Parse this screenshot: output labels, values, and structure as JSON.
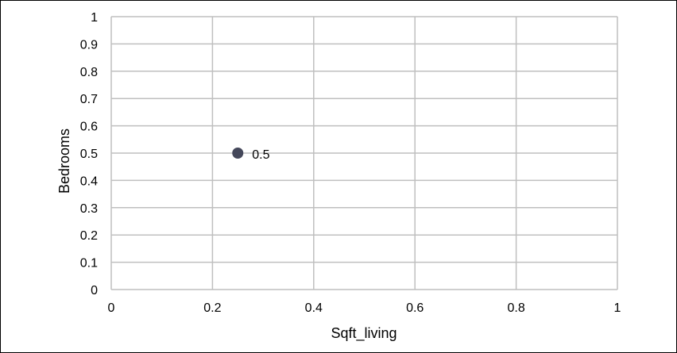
{
  "chart_data": {
    "type": "scatter",
    "xlabel": "Sqft_living",
    "ylabel": "Bedrooms",
    "xlim": [
      0,
      1
    ],
    "ylim": [
      0,
      1
    ],
    "x_ticks": [
      "0",
      "0.2",
      "0.4",
      "0.6",
      "0.8",
      "1"
    ],
    "y_ticks": [
      "0",
      "0.1",
      "0.2",
      "0.3",
      "0.4",
      "0.5",
      "0.6",
      "0.7",
      "0.8",
      "0.9",
      "1"
    ],
    "x_tick_values": [
      0,
      0.2,
      0.4,
      0.6,
      0.8,
      1
    ],
    "y_tick_values": [
      0,
      0.1,
      0.2,
      0.3,
      0.4,
      0.5,
      0.6,
      0.7,
      0.8,
      0.9,
      1
    ],
    "grid": true,
    "series": [
      {
        "points": [
          {
            "x": 0.25,
            "y": 0.5,
            "label": "0.5"
          }
        ]
      }
    ]
  },
  "colors": {
    "gridline": "#bfbfbf",
    "marker": "#44475a",
    "frame": "#000000",
    "text": "#000000"
  }
}
